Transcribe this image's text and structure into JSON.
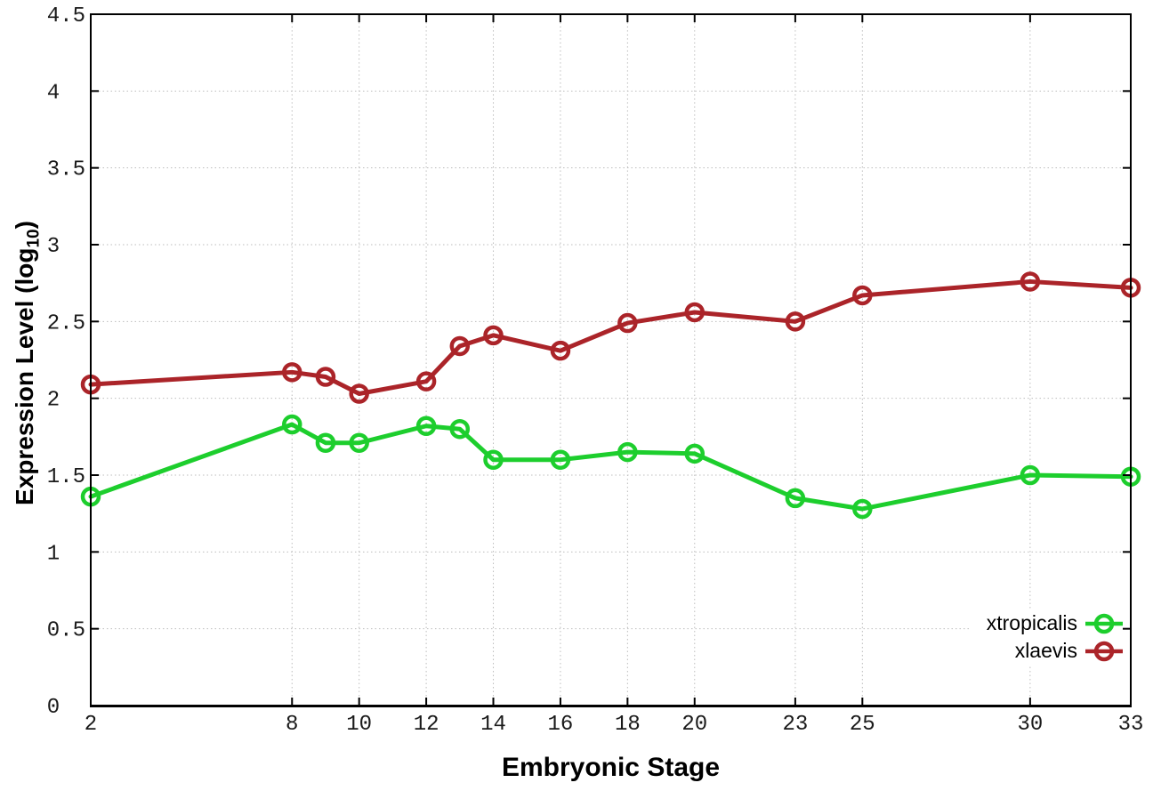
{
  "plot": {
    "background_color": "#ffffff",
    "border_color": "#000000",
    "grid_color": "#bdbdbd",
    "tick_label_color": "#1a1a1a"
  },
  "axes": {
    "x_label": "Embryonic Stage",
    "y_label_prefix": "Expression Level (log",
    "y_label_sub": "10",
    "y_label_suffix": ")"
  },
  "chart_data": {
    "type": "line",
    "title": "",
    "xlabel": "Embryonic Stage",
    "ylabel": "Expression Level (log10)",
    "xlim": [
      2,
      33
    ],
    "ylim": [
      0,
      4.5
    ],
    "grid": true,
    "legend_position": "bottom-right",
    "xticks": [
      2,
      8,
      10,
      12,
      14,
      16,
      18,
      20,
      23,
      25,
      30,
      33
    ],
    "yticks": [
      0,
      0.5,
      1,
      1.5,
      2,
      2.5,
      3,
      3.5,
      4,
      4.5
    ],
    "x": [
      2,
      8,
      9,
      10,
      12,
      13,
      14,
      16,
      18,
      20,
      23,
      25,
      30,
      33
    ],
    "series": [
      {
        "name": "xtropicalis",
        "color": "#1dce2d",
        "marker": "open-circle",
        "values": [
          1.36,
          1.83,
          1.71,
          1.71,
          1.82,
          1.8,
          1.6,
          1.6,
          1.65,
          1.64,
          1.35,
          1.28,
          1.5,
          1.49
        ]
      },
      {
        "name": "xlaevis",
        "color": "#ab2429",
        "marker": "open-circle",
        "values": [
          2.09,
          2.17,
          2.14,
          2.03,
          2.11,
          2.34,
          2.41,
          2.31,
          2.49,
          2.56,
          2.5,
          2.67,
          2.76,
          2.72
        ]
      }
    ]
  }
}
